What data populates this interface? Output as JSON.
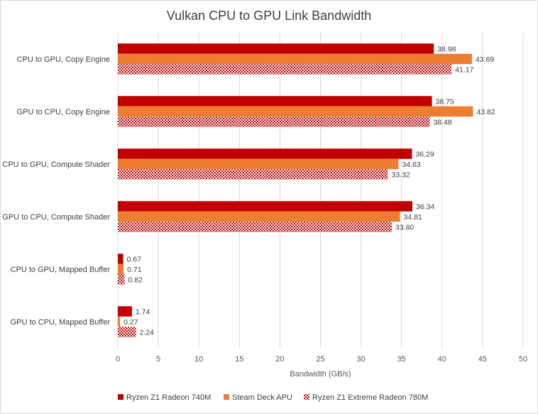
{
  "chart_data": {
    "type": "bar",
    "orientation": "horizontal",
    "title": "Vulkan CPU to GPU Link Bandwidth",
    "xlabel": "Bandwidth (GB/s)",
    "ylabel": "",
    "xlim": [
      0,
      50
    ],
    "x_ticks": [
      "0",
      "5",
      "10",
      "15",
      "20",
      "25",
      "30",
      "35",
      "40",
      "45",
      "50"
    ],
    "grid": true,
    "legend_position": "bottom",
    "categories": [
      "CPU to GPU, Copy Engine",
      "GPU to CPU, Copy Engine",
      "CPU to GPU, Compute Shader",
      "GPU to CPU, Compute Shader",
      "CPU to GPU, Mapped Buffer",
      "GPU to CPU, Mapped Buffer"
    ],
    "series": [
      {
        "name": "Ryzen Z1 Radeon 740M",
        "color": "#c00000",
        "fill": "solid",
        "values": [
          38.98,
          38.75,
          36.29,
          36.34,
          0.67,
          1.74
        ],
        "labels": [
          "38.98",
          "38.75",
          "36.29",
          "36.34",
          "0.67",
          "1.74"
        ]
      },
      {
        "name": "Steam Deck APU",
        "color": "#ed7d31",
        "fill": "solid",
        "values": [
          43.69,
          43.82,
          34.63,
          34.81,
          0.71,
          0.27
        ],
        "labels": [
          "43.69",
          "43.82",
          "34.63",
          "34.81",
          "0.71",
          "0.27"
        ]
      },
      {
        "name": "Ryzen Z1 Extreme Radeon 780M",
        "color": "#c00000",
        "fill": "checker",
        "values": [
          41.17,
          38.48,
          33.32,
          33.8,
          0.82,
          2.24
        ],
        "labels": [
          "41.17",
          "38.48",
          "33.32",
          "33.80",
          "0.82",
          "2.24"
        ]
      }
    ]
  }
}
